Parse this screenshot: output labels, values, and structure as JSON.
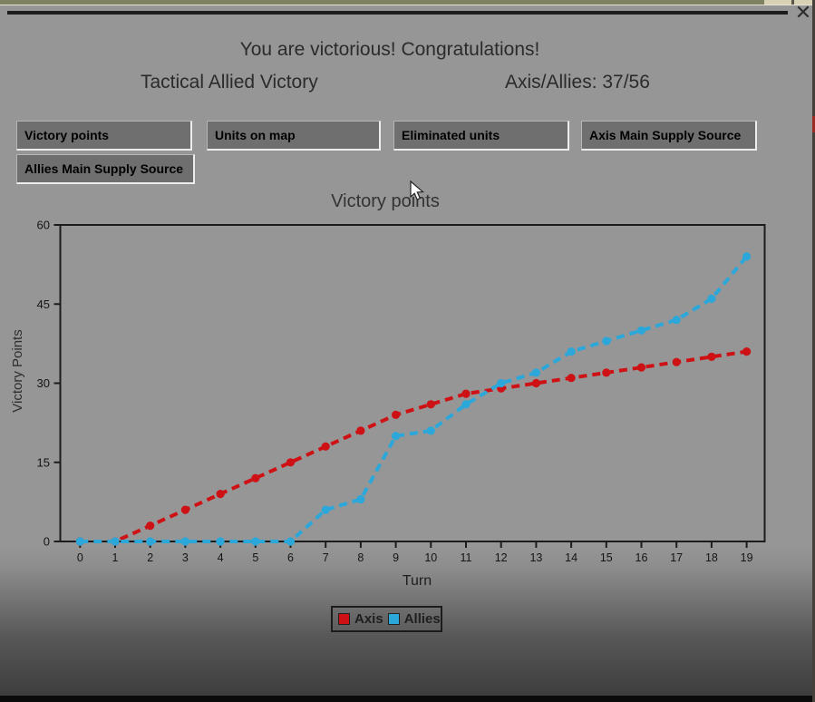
{
  "window": {
    "close_label": "✕"
  },
  "header": {
    "victory_message": "You are victorious! Congratulations!",
    "victory_type": "Tactical Allied Victory",
    "score_label": "Axis/Allies: 37/56"
  },
  "toolbar": {
    "buttons": [
      {
        "label": "Victory points"
      },
      {
        "label": "Units on map"
      },
      {
        "label": "Eliminated units"
      },
      {
        "label": "Axis Main Supply Source"
      },
      {
        "label": "Allies Main Supply Source"
      }
    ]
  },
  "chart_data": {
    "type": "line",
    "title": "Victory points",
    "xlabel": "Turn",
    "ylabel": "Victory Points",
    "x": [
      0,
      1,
      2,
      3,
      4,
      5,
      6,
      7,
      8,
      9,
      10,
      11,
      12,
      13,
      14,
      15,
      16,
      17,
      18,
      19
    ],
    "xlim": [
      0,
      19
    ],
    "ylim": [
      0,
      60
    ],
    "yticks": [
      0,
      15,
      30,
      45,
      60
    ],
    "grid": false,
    "line_style": "dashed",
    "marker": "circle",
    "legend_position": "bottom",
    "series": [
      {
        "name": "Axis",
        "color": "#ce1115",
        "values": [
          0,
          0,
          3,
          6,
          9,
          12,
          15,
          18,
          21,
          24,
          26,
          28,
          29,
          30,
          31,
          32,
          33,
          34,
          35,
          36
        ]
      },
      {
        "name": "Allies",
        "color": "#2ca7da",
        "values": [
          0,
          0,
          0,
          0,
          0,
          0,
          0,
          6,
          8,
          20,
          21,
          26,
          30,
          32,
          36,
          38,
          40,
          42,
          46,
          54
        ]
      }
    ]
  }
}
